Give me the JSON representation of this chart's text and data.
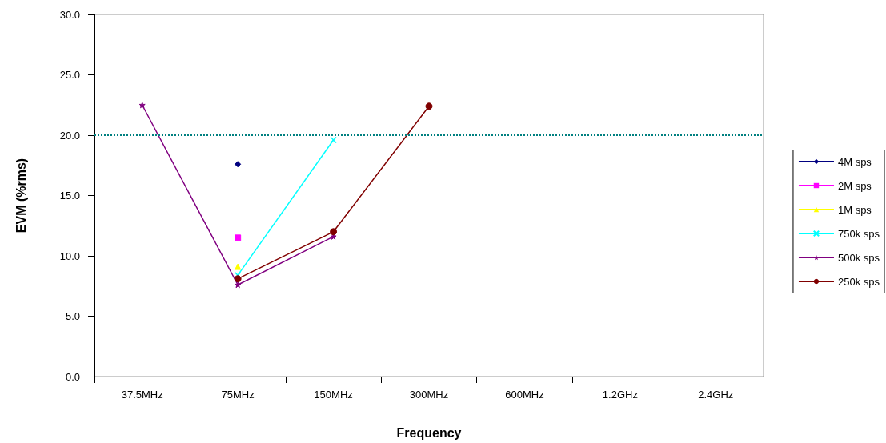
{
  "chart_data": {
    "type": "line",
    "xlabel": "Frequency",
    "ylabel": "EVM (%rms)",
    "categories": [
      "37.5MHz",
      "75MHz",
      "150MHz",
      "300MHz",
      "600MHz",
      "1.2GHz",
      "2.4GHz"
    ],
    "ylim": [
      0,
      30
    ],
    "yticks": [
      {
        "value": 0,
        "label": "0.0"
      },
      {
        "value": 5,
        "label": "5.0"
      },
      {
        "value": 10,
        "label": "10.0"
      },
      {
        "value": 15,
        "label": "15.0"
      },
      {
        "value": 20,
        "label": "20.0"
      },
      {
        "value": 25,
        "label": "25.0"
      },
      {
        "value": 30,
        "label": "30.0"
      }
    ],
    "grid": false,
    "legend": "right",
    "line_style": "solid",
    "series": [
      {
        "name": "4M sps",
        "color": "#000080",
        "marker": "diamond",
        "values": [
          null,
          17.6,
          null,
          null,
          null,
          null,
          null
        ]
      },
      {
        "name": "2M sps",
        "color": "#ff00ff",
        "marker": "square",
        "values": [
          null,
          11.5,
          null,
          null,
          null,
          null,
          null
        ]
      },
      {
        "name": "1M sps",
        "color": "#ffff00",
        "marker": "triangle",
        "values": [
          null,
          9.1,
          null,
          null,
          null,
          null,
          null
        ]
      },
      {
        "name": "750k sps",
        "color": "#00ffff",
        "marker": "cross",
        "values": [
          null,
          8.4,
          19.6,
          null,
          null,
          null,
          null
        ]
      },
      {
        "name": "500k sps",
        "color": "#800080",
        "marker": "star",
        "values": [
          22.5,
          7.6,
          11.6,
          null,
          null,
          null,
          null
        ]
      },
      {
        "name": "250k sps",
        "color": "#800000",
        "marker": "circle",
        "values": [
          null,
          8.1,
          12.0,
          22.4,
          null,
          null,
          null
        ]
      }
    ],
    "ref_lines": [
      {
        "axis": "y",
        "value": 20,
        "color": "#008080",
        "line_style": "dotted"
      }
    ]
  }
}
